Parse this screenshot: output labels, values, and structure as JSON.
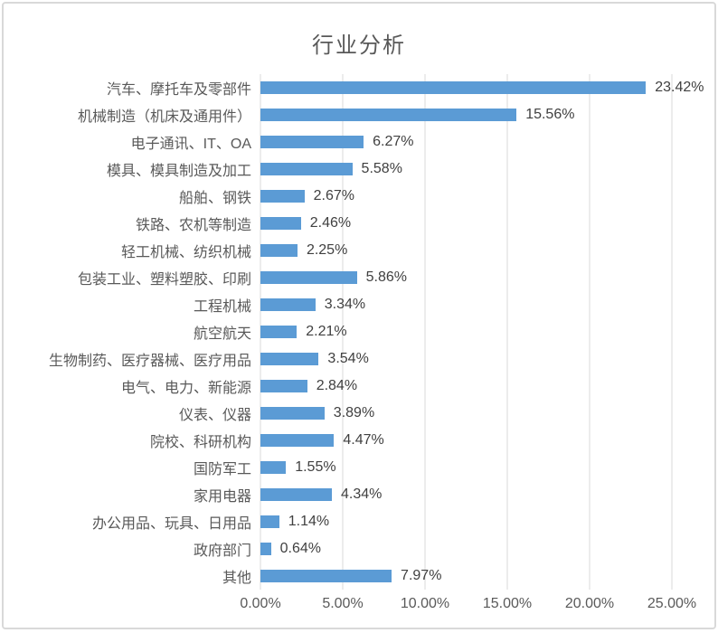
{
  "chart": {
    "title": "行业分析",
    "bar_color": "#5B9BD5",
    "gridline_color": "#D9D9D9",
    "frame_color": "#D9D9D9",
    "title_color": "#595959",
    "label_color": "#595959",
    "data_label_color": "#404040"
  },
  "chart_data": {
    "type": "bar",
    "orientation": "horizontal",
    "title": "行业分析",
    "categories": [
      "汽车、摩托车及零部件",
      "机械制造（机床及通用件）",
      "电子通讯、IT、OA",
      "模具、模具制造及加工",
      "船舶、钢铁",
      "铁路、农机等制造",
      "轻工机械、纺织机械",
      "包装工业、塑料塑胶、印刷",
      "工程机械",
      "航空航天",
      "生物制药、医疗器械、医疗用品",
      "电气、电力、新能源",
      "仪表、仪器",
      "院校、科研机构",
      "国防军工",
      "家用电器",
      "办公用品、玩具、日用品",
      "政府部门",
      "其他"
    ],
    "values": [
      23.42,
      15.56,
      6.27,
      5.58,
      2.67,
      2.46,
      2.25,
      5.86,
      3.34,
      2.21,
      3.54,
      2.84,
      3.89,
      4.47,
      1.55,
      4.34,
      1.14,
      0.64,
      7.97
    ],
    "data_labels": [
      "23.42%",
      "15.56%",
      "6.27%",
      "5.58%",
      "2.67%",
      "2.46%",
      "2.25%",
      "5.86%",
      "3.34%",
      "2.21%",
      "3.54%",
      "2.84%",
      "3.89%",
      "4.47%",
      "1.55%",
      "4.34%",
      "1.14%",
      "0.64%",
      "7.97%"
    ],
    "x_tick_labels": [
      "0.00%",
      "5.00%",
      "10.00%",
      "15.00%",
      "20.00%",
      "25.00%"
    ],
    "xlim": [
      0,
      25
    ],
    "grid": true,
    "legend": false,
    "xlabel": "",
    "ylabel": ""
  }
}
